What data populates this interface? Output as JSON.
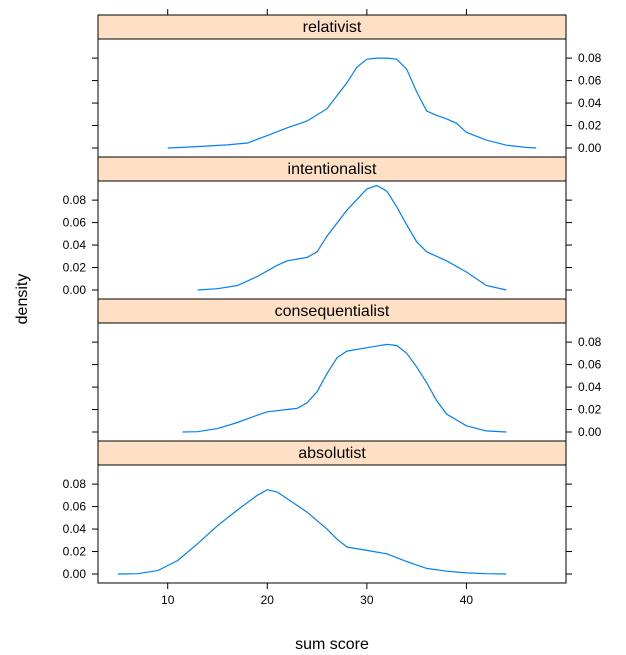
{
  "chart_data": {
    "type": "line",
    "layout": "trellis-stacked",
    "xlabel": "sum score",
    "ylabel": "density",
    "xlim": [
      3,
      50
    ],
    "ylim": [
      -0.008,
      0.097
    ],
    "x_ticks": [
      10,
      20,
      30,
      40
    ],
    "y_ticks": [
      0.0,
      0.02,
      0.04,
      0.06,
      0.08
    ],
    "y_tick_labels": [
      "0.00",
      "0.02",
      "0.04",
      "0.06",
      "0.08"
    ],
    "strip_color": "#ffe0c4",
    "line_color": "#0080ff",
    "panels": [
      {
        "name": "relativist",
        "y_axis_side": "right",
        "points": [
          [
            10,
            0.0
          ],
          [
            12,
            0.0008
          ],
          [
            14,
            0.0018
          ],
          [
            16,
            0.0028
          ],
          [
            18,
            0.0045
          ],
          [
            20,
            0.011
          ],
          [
            22,
            0.018
          ],
          [
            24,
            0.024
          ],
          [
            26,
            0.035
          ],
          [
            28,
            0.058
          ],
          [
            29,
            0.072
          ],
          [
            30,
            0.079
          ],
          [
            31,
            0.08
          ],
          [
            32,
            0.08
          ],
          [
            33,
            0.079
          ],
          [
            34,
            0.07
          ],
          [
            35,
            0.05
          ],
          [
            36,
            0.033
          ],
          [
            37,
            0.029
          ],
          [
            38,
            0.026
          ],
          [
            39,
            0.022
          ],
          [
            40,
            0.014
          ],
          [
            42,
            0.007
          ],
          [
            44,
            0.0025
          ],
          [
            46,
            0.0005
          ],
          [
            47,
            0.0
          ]
        ]
      },
      {
        "name": "intentionalist",
        "y_axis_side": "left",
        "points": [
          [
            13,
            0.0
          ],
          [
            15,
            0.0012
          ],
          [
            17,
            0.004
          ],
          [
            19,
            0.012
          ],
          [
            21,
            0.022
          ],
          [
            22,
            0.026
          ],
          [
            24,
            0.029
          ],
          [
            25,
            0.034
          ],
          [
            26,
            0.048
          ],
          [
            28,
            0.071
          ],
          [
            30,
            0.09
          ],
          [
            31,
            0.093
          ],
          [
            32,
            0.088
          ],
          [
            33,
            0.074
          ],
          [
            34,
            0.058
          ],
          [
            35,
            0.043
          ],
          [
            36,
            0.034
          ],
          [
            38,
            0.026
          ],
          [
            40,
            0.016
          ],
          [
            42,
            0.004
          ],
          [
            44,
            0.0
          ]
        ]
      },
      {
        "name": "consequentialist",
        "y_axis_side": "right",
        "points": [
          [
            11.5,
            0.0
          ],
          [
            13,
            0.0003
          ],
          [
            15,
            0.003
          ],
          [
            17,
            0.0085
          ],
          [
            19,
            0.015
          ],
          [
            20,
            0.018
          ],
          [
            22,
            0.02
          ],
          [
            23,
            0.021
          ],
          [
            24,
            0.026
          ],
          [
            25,
            0.036
          ],
          [
            26,
            0.052
          ],
          [
            27,
            0.066
          ],
          [
            28,
            0.072
          ],
          [
            30,
            0.075
          ],
          [
            32,
            0.078
          ],
          [
            33,
            0.077
          ],
          [
            34,
            0.07
          ],
          [
            35,
            0.058
          ],
          [
            36,
            0.044
          ],
          [
            37,
            0.028
          ],
          [
            38,
            0.016
          ],
          [
            40,
            0.0055
          ],
          [
            42,
            0.001
          ],
          [
            44,
            0.0
          ]
        ]
      },
      {
        "name": "absolutist",
        "y_axis_side": "left",
        "points": [
          [
            5,
            0.0
          ],
          [
            7,
            0.0003
          ],
          [
            9,
            0.003
          ],
          [
            11,
            0.012
          ],
          [
            13,
            0.027
          ],
          [
            15,
            0.043
          ],
          [
            17,
            0.057
          ],
          [
            19,
            0.07
          ],
          [
            20,
            0.075
          ],
          [
            21,
            0.073
          ],
          [
            22,
            0.067
          ],
          [
            24,
            0.055
          ],
          [
            26,
            0.04
          ],
          [
            27,
            0.031
          ],
          [
            28,
            0.024
          ],
          [
            30,
            0.021
          ],
          [
            32,
            0.018
          ],
          [
            34,
            0.011
          ],
          [
            36,
            0.005
          ],
          [
            38,
            0.0025
          ],
          [
            40,
            0.001
          ],
          [
            42,
            0.0003
          ],
          [
            44,
            0.0
          ]
        ]
      }
    ]
  }
}
